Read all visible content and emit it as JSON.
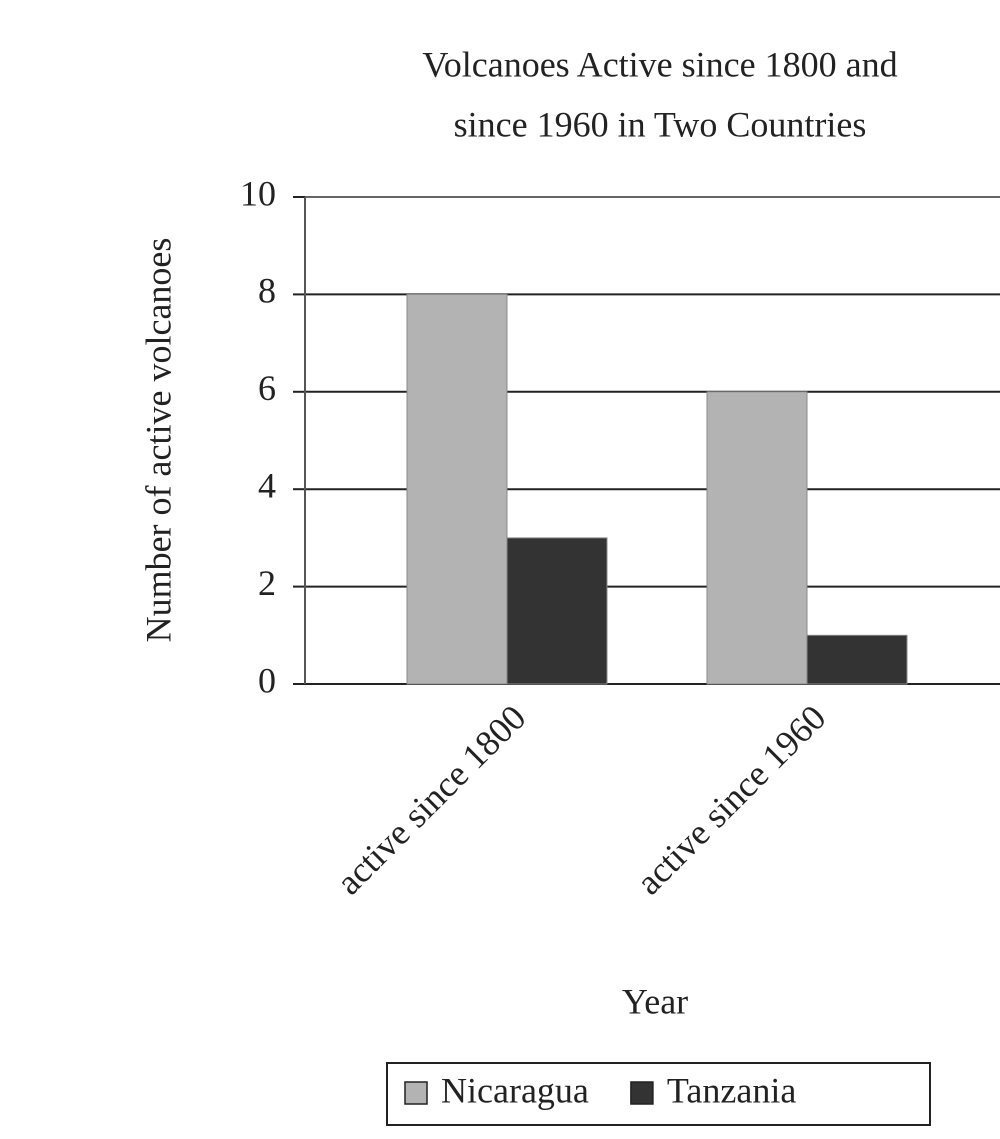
{
  "chart_data": {
    "type": "bar",
    "title": [
      "Volcanoes Active since 1800 and",
      "since 1960 in Two Countries"
    ],
    "x_label": "Year",
    "y_label": "Number of active volcanoes",
    "categories": [
      "active since 1800",
      "active since 1960"
    ],
    "series": [
      {
        "name": "Nicaragua",
        "color": "#b3b3b3",
        "values": [
          8,
          6
        ]
      },
      {
        "name": "Tanzania",
        "color": "#333333",
        "values": [
          3,
          1
        ]
      }
    ],
    "ylim": [
      0,
      10
    ],
    "yticks": [
      0,
      2,
      4,
      6,
      8,
      10
    ],
    "grid": true,
    "legend": "bottom"
  }
}
